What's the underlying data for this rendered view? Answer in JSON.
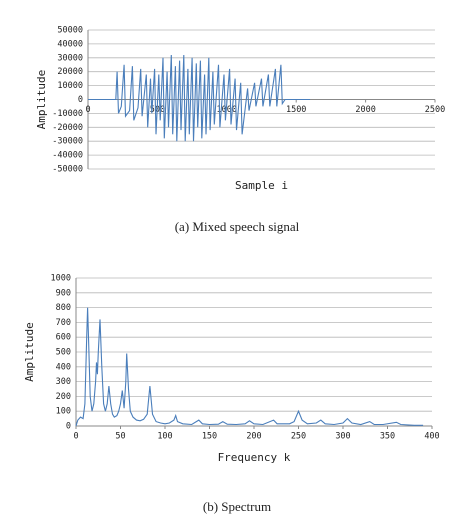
{
  "chart_data": [
    {
      "type": "line",
      "title": "(a) Mixed speech signal",
      "x_label": "Sample i",
      "y_label": "Amplitude",
      "xlim": [
        0,
        2500
      ],
      "xticks": [
        0,
        500,
        1000,
        1500,
        2000,
        2500
      ],
      "ylim": [
        -50000,
        50000
      ],
      "yticks": [
        -50000,
        -40000,
        -30000,
        -20000,
        -10000,
        0,
        10000,
        20000,
        30000,
        40000,
        50000
      ],
      "grid": true,
      "series": [
        {
          "color": "#4a7ebb",
          "x": [
            0,
            200,
            210,
            220,
            240,
            260,
            270,
            300,
            320,
            330,
            360,
            380,
            390,
            420,
            430,
            450,
            460,
            480,
            490,
            510,
            520,
            540,
            550,
            570,
            580,
            600,
            610,
            630,
            640,
            660,
            670,
            690,
            700,
            720,
            730,
            750,
            760,
            780,
            790,
            810,
            820,
            840,
            850,
            870,
            880,
            900,
            910,
            940,
            950,
            980,
            990,
            1020,
            1030,
            1060,
            1070,
            1100,
            1110,
            1150,
            1160,
            1200,
            1210,
            1250,
            1260,
            1300,
            1310,
            1350,
            1360,
            1390,
            1400,
            1420,
            1600
          ],
          "values": [
            0,
            0,
            20000,
            -10000,
            -5000,
            25000,
            -12000,
            -8000,
            24000,
            -15000,
            -6000,
            22000,
            -12000,
            18000,
            -20000,
            15000,
            -10000,
            22000,
            -25000,
            18000,
            -15000,
            30000,
            -28000,
            20000,
            -20000,
            32000,
            -25000,
            24000,
            -30000,
            28000,
            -22000,
            32000,
            -30000,
            22000,
            -25000,
            30000,
            -30000,
            26000,
            -20000,
            28000,
            -28000,
            18000,
            -25000,
            30000,
            -22000,
            20000,
            -18000,
            25000,
            -20000,
            18000,
            -15000,
            22000,
            -18000,
            15000,
            -22000,
            12000,
            -25000,
            8000,
            -8000,
            12000,
            -5000,
            15000,
            -5000,
            18000,
            -5000,
            22000,
            -5000,
            25000,
            -3000,
            0,
            0
          ]
        }
      ]
    },
    {
      "type": "line",
      "title": "(b) Spectrum",
      "x_label": "Frequency k",
      "y_label": "Amplitude",
      "xlim": [
        0,
        400
      ],
      "xticks": [
        0,
        50,
        100,
        150,
        200,
        250,
        300,
        350,
        400
      ],
      "ylim": [
        0,
        1000
      ],
      "yticks": [
        0,
        100,
        200,
        300,
        400,
        500,
        600,
        700,
        800,
        900,
        1000
      ],
      "grid": true,
      "series": [
        {
          "color": "#4a7ebb",
          "x": [
            0,
            2,
            5,
            8,
            10,
            12,
            13,
            14,
            16,
            18,
            20,
            22,
            23,
            24,
            25,
            27,
            29,
            31,
            33,
            35,
            37,
            39,
            41,
            43,
            46,
            48,
            50,
            52,
            54,
            56,
            57,
            59,
            61,
            64,
            68,
            72,
            76,
            80,
            83,
            86,
            90,
            95,
            100,
            105,
            110,
            112,
            114,
            120,
            130,
            138,
            142,
            150,
            160,
            165,
            170,
            180,
            190,
            195,
            200,
            210,
            222,
            226,
            240,
            245,
            250,
            254,
            260,
            270,
            275,
            280,
            290,
            300,
            305,
            310,
            320,
            330,
            335,
            345,
            360,
            365,
            380,
            390
          ],
          "values": [
            0,
            40,
            60,
            50,
            150,
            600,
            800,
            600,
            200,
            100,
            150,
            300,
            430,
            350,
            500,
            720,
            400,
            150,
            100,
            150,
            270,
            150,
            80,
            60,
            70,
            100,
            150,
            240,
            120,
            300,
            490,
            250,
            100,
            60,
            40,
            35,
            45,
            80,
            270,
            80,
            30,
            20,
            15,
            20,
            40,
            70,
            30,
            15,
            10,
            40,
            15,
            10,
            12,
            30,
            12,
            10,
            15,
            35,
            15,
            10,
            40,
            15,
            15,
            30,
            100,
            40,
            15,
            20,
            40,
            15,
            10,
            20,
            50,
            20,
            10,
            30,
            10,
            10,
            25,
            10,
            5,
            5
          ]
        }
      ]
    }
  ]
}
